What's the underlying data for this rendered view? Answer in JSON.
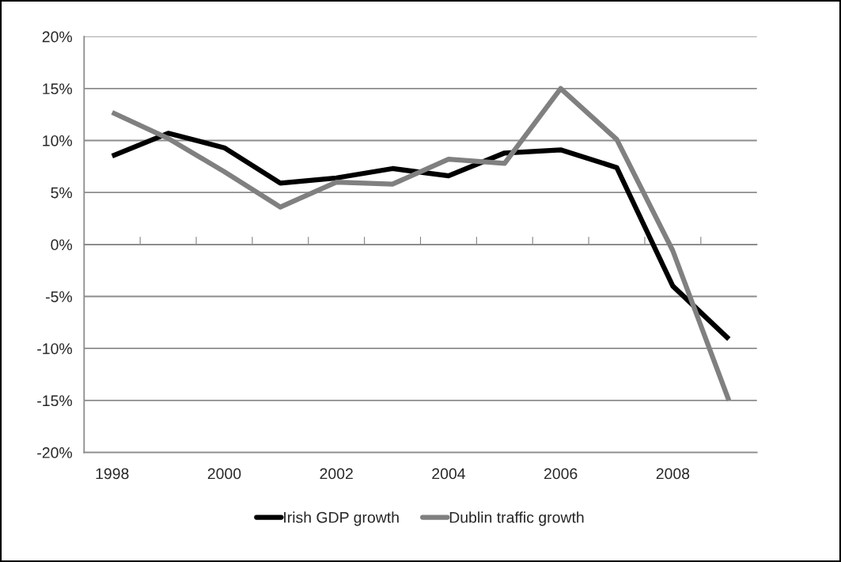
{
  "chart_data": {
    "type": "line",
    "categories": [
      "1998",
      null,
      "2000",
      null,
      "2002",
      null,
      "2004",
      null,
      "2006",
      null,
      "2008",
      null
    ],
    "series": [
      {
        "name": "Irish GDP growth",
        "color": "#000000",
        "values": [
          8.5,
          10.7,
          9.3,
          5.9,
          6.4,
          7.3,
          6.6,
          8.8,
          9.1,
          7.4,
          -4.0,
          -9.1
        ]
      },
      {
        "name": "Dublin traffic growth",
        "color": "#808080",
        "values": [
          12.7,
          10.2,
          7.0,
          3.6,
          6.0,
          5.8,
          8.2,
          7.8,
          15.0,
          10.1,
          -0.6,
          -15.0
        ]
      }
    ],
    "ylim": [
      -20,
      20
    ],
    "yticks": [
      {
        "value": -20,
        "label": "-20%"
      },
      {
        "value": -15,
        "label": "-15%"
      },
      {
        "value": -10,
        "label": "-10%"
      },
      {
        "value": -5,
        "label": "-5%"
      },
      {
        "value": 0,
        "label": "0%"
      },
      {
        "value": 5,
        "label": "5%"
      },
      {
        "value": 10,
        "label": "10%"
      },
      {
        "value": 15,
        "label": "15%"
      },
      {
        "value": 20,
        "label": "20%"
      }
    ],
    "grid": "y",
    "legend": "bottom",
    "marker": "none",
    "line_style": "solid"
  }
}
